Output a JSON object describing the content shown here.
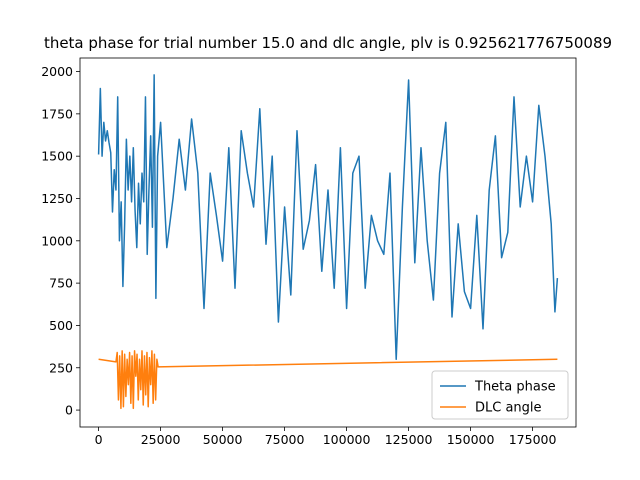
{
  "chart_data": {
    "type": "line",
    "title": "theta phase for trial number 15.0 and dlc angle, plv is 0.925621776750089",
    "xlabel": "",
    "ylabel": "",
    "xlim": [
      -7500,
      192500
    ],
    "ylim": [
      -100,
      2080
    ],
    "xticks": [
      0,
      25000,
      50000,
      75000,
      100000,
      125000,
      150000,
      175000
    ],
    "yticks": [
      0,
      250,
      500,
      750,
      1000,
      1250,
      1500,
      1750,
      2000
    ],
    "grid": false,
    "legend_position": "lower-right",
    "series": [
      {
        "name": "Theta phase",
        "color": "#1f77b4",
        "x": [
          0,
          700,
          1400,
          2100,
          2800,
          3500,
          4200,
          4900,
          5600,
          6300,
          7000,
          7700,
          8400,
          9100,
          9800,
          10500,
          11200,
          11900,
          12600,
          13300,
          14000,
          14700,
          15400,
          16100,
          16800,
          17500,
          18200,
          18900,
          19600,
          20300,
          21000,
          21700,
          22400,
          23100,
          23800,
          25000,
          27500,
          30000,
          32500,
          35000,
          37500,
          40000,
          42500,
          45000,
          47500,
          50000,
          52500,
          55000,
          57500,
          60000,
          62500,
          65000,
          67500,
          70000,
          72500,
          75000,
          77500,
          80000,
          82500,
          85000,
          87500,
          90000,
          92500,
          95000,
          97500,
          100000,
          102500,
          105000,
          107500,
          110000,
          112500,
          115000,
          117500,
          120000,
          122500,
          125000,
          127500,
          130000,
          132500,
          135000,
          137500,
          140000,
          142500,
          145000,
          147500,
          150000,
          152500,
          155000,
          157500,
          160000,
          162500,
          165000,
          167500,
          170000,
          172500,
          175000,
          177500,
          180000,
          182500,
          184000,
          185000
        ],
        "y": [
          1510,
          1900,
          1500,
          1700,
          1590,
          1650,
          1580,
          1520,
          1170,
          1420,
          1300,
          1850,
          1000,
          1230,
          730,
          1100,
          1600,
          1300,
          1500,
          1230,
          1550,
          1180,
          960,
          1340,
          1100,
          1400,
          1230,
          1850,
          920,
          1300,
          1620,
          1080,
          1980,
          660,
          1500,
          1700,
          960,
          1250,
          1600,
          1300,
          1720,
          1400,
          600,
          1400,
          1150,
          880,
          1550,
          720,
          1650,
          1400,
          1200,
          1780,
          980,
          1500,
          520,
          1200,
          680,
          1650,
          950,
          1120,
          1450,
          820,
          1300,
          720,
          1550,
          600,
          1400,
          1500,
          720,
          1150,
          1000,
          920,
          1400,
          300,
          1200,
          1950,
          870,
          1550,
          1000,
          650,
          1400,
          1700,
          550,
          1100,
          700,
          600,
          1150,
          480,
          1300,
          1620,
          900,
          1050,
          1850,
          1200,
          1500,
          1230,
          1800,
          1500,
          1100,
          580,
          780
        ]
      },
      {
        "name": "DLC angle",
        "color": "#ff7f0e",
        "x": [
          0,
          7000,
          7500,
          8000,
          8500,
          9000,
          9500,
          10000,
          10500,
          11000,
          11500,
          12000,
          12500,
          13000,
          13500,
          14000,
          14500,
          15000,
          15500,
          16000,
          16500,
          17000,
          17500,
          18000,
          18500,
          19000,
          19500,
          20000,
          20500,
          21000,
          21500,
          22000,
          22500,
          23000,
          23500,
          24000,
          185000
        ],
        "y": [
          300,
          285,
          340,
          60,
          320,
          10,
          350,
          20,
          330,
          80,
          300,
          150,
          340,
          40,
          320,
          10,
          350,
          200,
          330,
          60,
          300,
          120,
          350,
          30,
          320,
          90,
          340,
          20,
          310,
          150,
          350,
          40,
          330,
          60,
          300,
          255,
          300
        ]
      }
    ]
  }
}
